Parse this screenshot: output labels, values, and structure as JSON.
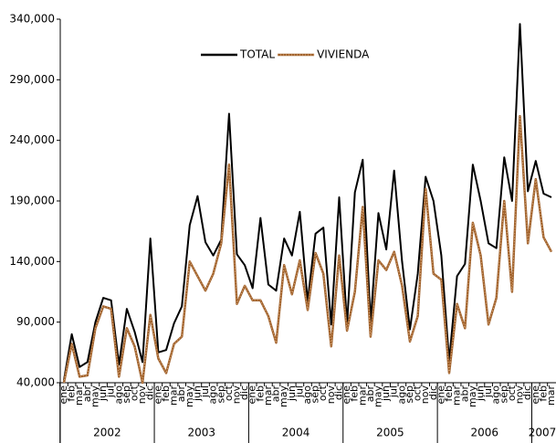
{
  "chart_data": {
    "type": "line",
    "categories": [
      "ene",
      "feb",
      "mar",
      "abr",
      "may",
      "jun",
      "jul",
      "ago",
      "sep",
      "oct",
      "nov",
      "dic",
      "ene",
      "feb",
      "mar",
      "abr",
      "may",
      "jun",
      "jul",
      "ago",
      "sep",
      "oct",
      "nov",
      "dic",
      "ene",
      "feb",
      "mar",
      "abr",
      "may",
      "jun",
      "jul",
      "ago",
      "sep",
      "oct",
      "nov",
      "dic",
      "ene",
      "feb",
      "mar",
      "abr",
      "may",
      "jun",
      "jul",
      "ago",
      "sep",
      "oct",
      "nov",
      "dic",
      "ene",
      "feb",
      "mar",
      "abr",
      "may",
      "jun",
      "jul",
      "ago",
      "sep",
      "oct",
      "nov",
      "dic",
      "ene",
      "feb",
      "mar"
    ],
    "years": [
      "2002",
      "2003",
      "2004",
      "2005",
      "2006",
      "2007"
    ],
    "series": [
      {
        "name": "TOTAL",
        "color": "#000000",
        "values": [
          42000,
          80000,
          53000,
          57000,
          90000,
          110000,
          108000,
          55000,
          101000,
          82000,
          57000,
          159000,
          65000,
          67000,
          89000,
          103000,
          170000,
          194000,
          156000,
          145000,
          158000,
          262000,
          146000,
          137000,
          118000,
          176000,
          121000,
          116000,
          159000,
          145000,
          181000,
          107000,
          163000,
          168000,
          88000,
          193000,
          88000,
          197000,
          224000,
          90000,
          180000,
          150000,
          215000,
          140000,
          84000,
          130000,
          210000,
          190000,
          145000,
          58000,
          128000,
          138000,
          220000,
          190000,
          155000,
          151000,
          226000,
          190000,
          336000,
          198000,
          223000,
          196000,
          193000
        ]
      },
      {
        "name": "VIVIENDA",
        "color": "#a0622d",
        "values": [
          40000,
          72000,
          45000,
          46000,
          85000,
          103000,
          101000,
          45000,
          85000,
          70000,
          40000,
          96000,
          60000,
          48000,
          72000,
          78000,
          140000,
          128000,
          116000,
          130000,
          155000,
          220000,
          105000,
          120000,
          108000,
          108000,
          95000,
          73000,
          137000,
          113000,
          141000,
          100000,
          147000,
          130000,
          70000,
          145000,
          83000,
          115000,
          185000,
          78000,
          141000,
          133000,
          148000,
          120000,
          74000,
          95000,
          200000,
          130000,
          125000,
          48000,
          105000,
          85000,
          172000,
          145000,
          88000,
          110000,
          190000,
          115000,
          260000,
          155000,
          208000,
          160000,
          148000
        ]
      }
    ],
    "ylim": [
      40000,
      340000
    ],
    "yticks": [
      {
        "value": 40000,
        "label": "40,000"
      },
      {
        "value": 90000,
        "label": "90,000"
      },
      {
        "value": 140000,
        "label": "140,000"
      },
      {
        "value": 190000,
        "label": "190,000"
      },
      {
        "value": 240000,
        "label": "240,000"
      },
      {
        "value": 290000,
        "label": "290,000"
      },
      {
        "value": 340000,
        "label": "340,000"
      }
    ],
    "legend": "top"
  }
}
